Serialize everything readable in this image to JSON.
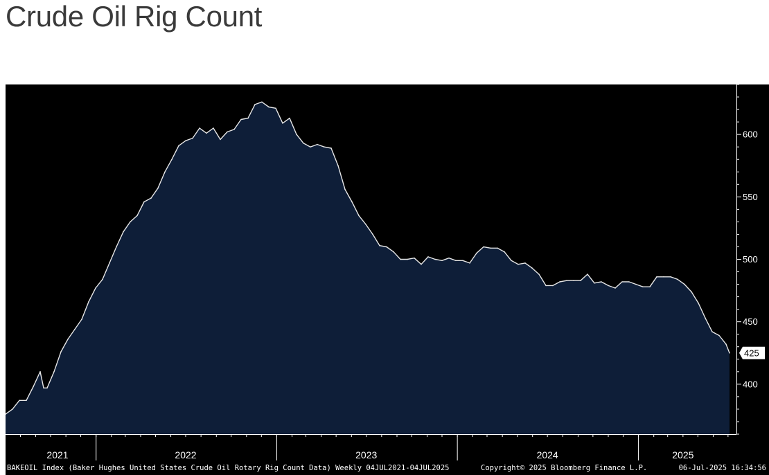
{
  "title": "Crude Oil Rig Count",
  "footer": {
    "description": "BAKEOIL Index (Baker Hughes United States Crude Oil Rotary Rig Count Data)  Weekly 04JUL2021-04JUL2025",
    "copyright": "Copyright© 2025 Bloomberg Finance L.P.",
    "timestamp": "06-Jul-2025 16:34:56"
  },
  "colors": {
    "background": "#000000",
    "area_fill": "#0e1e38",
    "line": "#e6e6e6",
    "axis_text": "#ffffff"
  },
  "chart_data": {
    "type": "area",
    "title": "Crude Oil Rig Count",
    "xlabel": "",
    "ylabel": "",
    "ylim": [
      360,
      640
    ],
    "xlim": [
      "2021-07-02",
      "2025-07-18"
    ],
    "y_ticks": [
      400,
      450,
      500,
      550,
      600
    ],
    "x_year_labels": [
      {
        "label": "2021",
        "date": "2021-10-15"
      },
      {
        "label": "2022",
        "date": "2022-07-01"
      },
      {
        "label": "2023",
        "date": "2023-07-01"
      },
      {
        "label": "2024",
        "date": "2024-07-01"
      },
      {
        "label": "2025",
        "date": "2025-04-01"
      }
    ],
    "year_boundaries": [
      "2022-01-01",
      "2023-01-01",
      "2024-01-01",
      "2025-01-01"
    ],
    "last_value_label": "425",
    "series": [
      {
        "points": [
          [
            "2021-07-02",
            376
          ],
          [
            "2021-07-16",
            380
          ],
          [
            "2021-07-30",
            387
          ],
          [
            "2021-08-13",
            387
          ],
          [
            "2021-08-27",
            398
          ],
          [
            "2021-09-10",
            410
          ],
          [
            "2021-09-17",
            397
          ],
          [
            "2021-09-24",
            397
          ],
          [
            "2021-10-08",
            410
          ],
          [
            "2021-10-22",
            426
          ],
          [
            "2021-11-05",
            436
          ],
          [
            "2021-11-19",
            444
          ],
          [
            "2021-12-03",
            452
          ],
          [
            "2021-12-17",
            466
          ],
          [
            "2021-12-31",
            477
          ],
          [
            "2022-01-14",
            484
          ],
          [
            "2022-01-28",
            497
          ],
          [
            "2022-02-11",
            510
          ],
          [
            "2022-02-25",
            522
          ],
          [
            "2022-03-11",
            530
          ],
          [
            "2022-03-25",
            535
          ],
          [
            "2022-04-08",
            546
          ],
          [
            "2022-04-22",
            549
          ],
          [
            "2022-05-06",
            557
          ],
          [
            "2022-05-20",
            570
          ],
          [
            "2022-06-03",
            580
          ],
          [
            "2022-06-17",
            591
          ],
          [
            "2022-07-01",
            595
          ],
          [
            "2022-07-15",
            597
          ],
          [
            "2022-07-29",
            605
          ],
          [
            "2022-08-12",
            601
          ],
          [
            "2022-08-26",
            605
          ],
          [
            "2022-09-09",
            596
          ],
          [
            "2022-09-23",
            602
          ],
          [
            "2022-10-07",
            604
          ],
          [
            "2022-10-21",
            612
          ],
          [
            "2022-11-04",
            613
          ],
          [
            "2022-11-18",
            624
          ],
          [
            "2022-12-02",
            626
          ],
          [
            "2022-12-16",
            622
          ],
          [
            "2022-12-30",
            621
          ],
          [
            "2023-01-13",
            609
          ],
          [
            "2023-01-27",
            613
          ],
          [
            "2023-02-10",
            600
          ],
          [
            "2023-02-24",
            593
          ],
          [
            "2023-03-10",
            590
          ],
          [
            "2023-03-24",
            592
          ],
          [
            "2023-04-07",
            590
          ],
          [
            "2023-04-21",
            589
          ],
          [
            "2023-05-05",
            575
          ],
          [
            "2023-05-19",
            556
          ],
          [
            "2023-06-02",
            546
          ],
          [
            "2023-06-16",
            535
          ],
          [
            "2023-06-30",
            528
          ],
          [
            "2023-07-14",
            520
          ],
          [
            "2023-07-28",
            511
          ],
          [
            "2023-08-11",
            510
          ],
          [
            "2023-08-25",
            506
          ],
          [
            "2023-09-08",
            500
          ],
          [
            "2023-09-22",
            500
          ],
          [
            "2023-10-06",
            501
          ],
          [
            "2023-10-20",
            496
          ],
          [
            "2023-11-03",
            502
          ],
          [
            "2023-11-17",
            500
          ],
          [
            "2023-12-01",
            499
          ],
          [
            "2023-12-15",
            501
          ],
          [
            "2023-12-29",
            499
          ],
          [
            "2024-01-12",
            499
          ],
          [
            "2024-01-26",
            497
          ],
          [
            "2024-02-09",
            505
          ],
          [
            "2024-02-23",
            510
          ],
          [
            "2024-03-08",
            509
          ],
          [
            "2024-03-22",
            509
          ],
          [
            "2024-04-05",
            506
          ],
          [
            "2024-04-19",
            499
          ],
          [
            "2024-05-03",
            496
          ],
          [
            "2024-05-17",
            497
          ],
          [
            "2024-05-31",
            493
          ],
          [
            "2024-06-14",
            488
          ],
          [
            "2024-06-28",
            479
          ],
          [
            "2024-07-12",
            479
          ],
          [
            "2024-07-26",
            482
          ],
          [
            "2024-08-09",
            483
          ],
          [
            "2024-08-23",
            483
          ],
          [
            "2024-09-06",
            483
          ],
          [
            "2024-09-20",
            488
          ],
          [
            "2024-10-04",
            481
          ],
          [
            "2024-10-18",
            482
          ],
          [
            "2024-11-01",
            479
          ],
          [
            "2024-11-15",
            477
          ],
          [
            "2024-11-29",
            482
          ],
          [
            "2024-12-13",
            482
          ],
          [
            "2024-12-27",
            480
          ],
          [
            "2025-01-10",
            478
          ],
          [
            "2025-01-24",
            478
          ],
          [
            "2025-02-07",
            486
          ],
          [
            "2025-02-21",
            486
          ],
          [
            "2025-03-07",
            486
          ],
          [
            "2025-03-21",
            484
          ],
          [
            "2025-04-04",
            480
          ],
          [
            "2025-04-18",
            474
          ],
          [
            "2025-05-02",
            465
          ],
          [
            "2025-05-16",
            453
          ],
          [
            "2025-05-30",
            442
          ],
          [
            "2025-06-13",
            439
          ],
          [
            "2025-06-27",
            432
          ],
          [
            "2025-07-04",
            425
          ]
        ]
      }
    ]
  }
}
